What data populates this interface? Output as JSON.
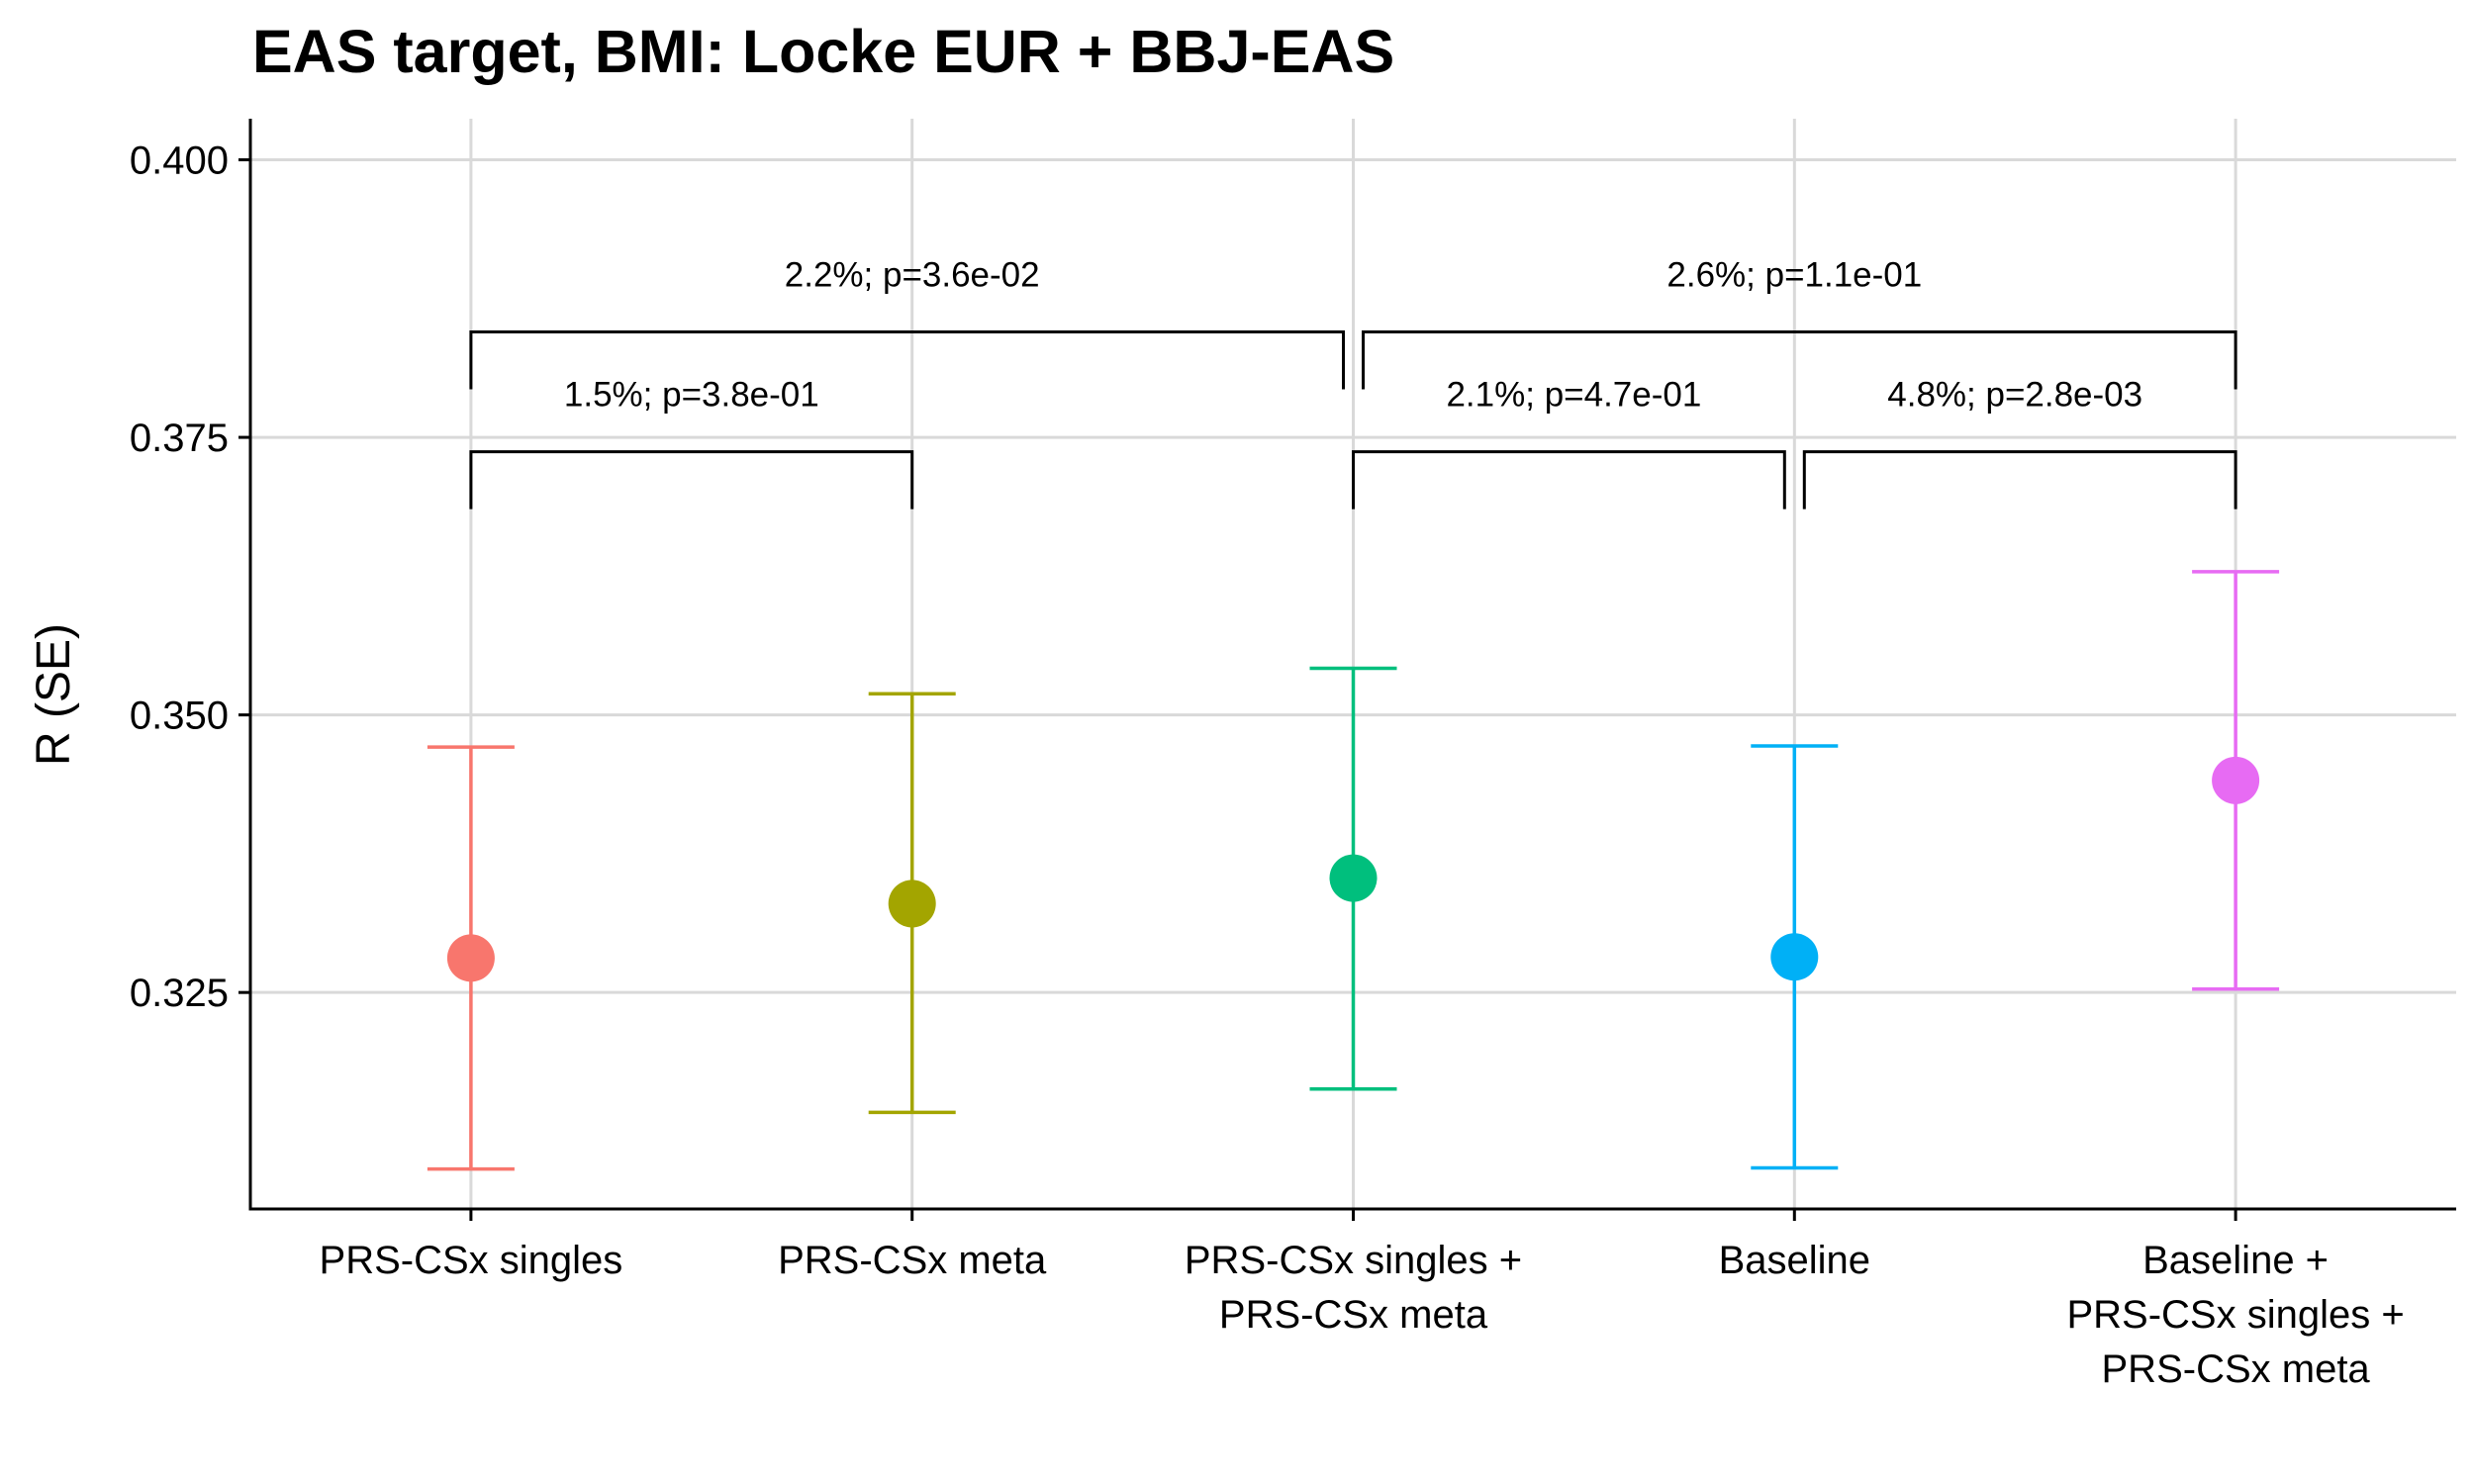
{
  "chart_data": {
    "type": "scatter",
    "title": "EAS target, BMI: Locke EUR + BBJ-EAS",
    "xlabel": "",
    "ylabel": "R (SE)",
    "ylim": [
      0.3055,
      0.4037
    ],
    "y_ticks": [
      "0.325",
      "0.350",
      "0.375",
      "0.400"
    ],
    "grid": true,
    "legend": "none",
    "categories": [
      [
        "PRS-CSx singles"
      ],
      [
        "PRS-CSx meta"
      ],
      [
        "PRS-CSx singles +",
        "PRS-CSx meta"
      ],
      [
        "Baseline"
      ],
      [
        "Baseline +",
        "PRS-CSx singles +",
        "PRS-CSx meta"
      ]
    ],
    "points": [
      {
        "y": 0.3281,
        "lower": 0.3091,
        "upper": 0.3471,
        "color": "#F8766D"
      },
      {
        "y": 0.333,
        "lower": 0.3142,
        "upper": 0.3519,
        "color": "#A3A500"
      },
      {
        "y": 0.3353,
        "lower": 0.3163,
        "upper": 0.3542,
        "color": "#00BF7D"
      },
      {
        "y": 0.3282,
        "lower": 0.3092,
        "upper": 0.3472,
        "color": "#00B0F6"
      },
      {
        "y": 0.3441,
        "lower": 0.3253,
        "upper": 0.3629,
        "color": "#E76BF3"
      }
    ],
    "comparisons": [
      {
        "from": 0,
        "to": 2,
        "level": 0.3845,
        "label": "2.2%; p=3.6e-02"
      },
      {
        "from": 2,
        "to": 4,
        "level": 0.3845,
        "label": "2.6%; p=1.1e-01"
      },
      {
        "from": 0,
        "to": 1,
        "level": 0.3737,
        "label": "1.5%; p=3.8e-01"
      },
      {
        "from": 2,
        "to": 3,
        "level": 0.3737,
        "label": "2.1%; p=4.7e-01"
      },
      {
        "from": 3,
        "to": 4,
        "level": 0.3737,
        "label": "4.8%; p=2.8e-03"
      }
    ]
  }
}
